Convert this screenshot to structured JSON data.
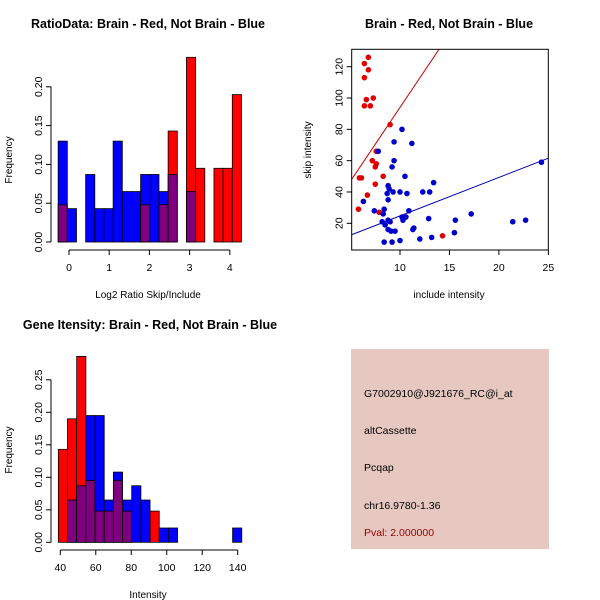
{
  "colors": {
    "red": "#ff0000",
    "blue": "#0000ff",
    "overlap": "#7f007f",
    "point_red": "#e00000",
    "point_blue": "#0000cc",
    "red_line": "#cc0000",
    "blue_line": "#0000aa",
    "info_bg": "#e6c8c0",
    "pval": "#990000"
  },
  "chart_data": [
    {
      "type": "bar",
      "subtype": "overlaid-histogram",
      "title": "RatioData: Brain - Red, Not Brain - Blue",
      "xlabel": "Log2 Ratio Skip/Include",
      "ylabel": "Frequency",
      "bin_start": -0.27,
      "bin_width": 0.228,
      "xticks": [
        0,
        1,
        2,
        3,
        4
      ],
      "yticks": [
        "0.00",
        "0.05",
        "0.10",
        "0.15",
        "0.20"
      ],
      "ylim": [
        0,
        0.24
      ],
      "series": [
        {
          "name": "Brain",
          "color": "red",
          "values": [
            0.048,
            0,
            0,
            0,
            0,
            0,
            0,
            0,
            0,
            0.048,
            0,
            0.048,
            0.143,
            0,
            0.238,
            0.095,
            0,
            0.095,
            0.095,
            0.19
          ]
        },
        {
          "name": "Not Brain",
          "color": "blue",
          "values": [
            0.13,
            0.043,
            0,
            0.087,
            0.043,
            0.043,
            0.13,
            0.065,
            0.065,
            0.087,
            0.087,
            0.065,
            0.087,
            0,
            0.065,
            0,
            0,
            0,
            0,
            0
          ]
        }
      ]
    },
    {
      "type": "scatter",
      "title": "Brain - Red, Not Brain - Blue",
      "xlabel": "include intensity",
      "ylabel": "skip intensity",
      "xlim": [
        5.1,
        25
      ],
      "ylim": [
        -3,
        131
      ],
      "xticks": [
        10,
        15,
        20,
        25
      ],
      "yticks": [
        20,
        40,
        60,
        80,
        100,
        120
      ],
      "series": [
        {
          "name": "Brain",
          "color": "red",
          "points": [
            [
              6.8,
              126
            ],
            [
              6.4,
              122
            ],
            [
              6.8,
              118
            ],
            [
              6.4,
              113
            ],
            [
              6.6,
              99
            ],
            [
              7.3,
              100
            ],
            [
              6.4,
              95
            ],
            [
              7.0,
              95
            ],
            [
              9.0,
              83
            ],
            [
              7.6,
              66
            ],
            [
              7.2,
              60
            ],
            [
              7.6,
              58
            ],
            [
              7.5,
              56
            ],
            [
              8.3,
              50
            ],
            [
              5.9,
              49
            ],
            [
              6.1,
              49
            ],
            [
              7.5,
              45
            ],
            [
              6.7,
              38
            ],
            [
              5.8,
              29
            ],
            [
              7.9,
              27
            ],
            [
              14.3,
              12
            ]
          ],
          "fit": {
            "slope": 9.4,
            "intercept": 0
          }
        },
        {
          "name": "Not Brain",
          "color": "blue",
          "points": [
            [
              10.2,
              80
            ],
            [
              9.4,
              72
            ],
            [
              11.2,
              71
            ],
            [
              7.8,
              66
            ],
            [
              9.4,
              60
            ],
            [
              9.2,
              56
            ],
            [
              10.5,
              50
            ],
            [
              13.4,
              46
            ],
            [
              8.8,
              44
            ],
            [
              8.9,
              42
            ],
            [
              9.3,
              40
            ],
            [
              10.0,
              40
            ],
            [
              12.3,
              40
            ],
            [
              13.0,
              40
            ],
            [
              8.7,
              39
            ],
            [
              10.7,
              39
            ],
            [
              8.8,
              35
            ],
            [
              6.3,
              34
            ],
            [
              7.4,
              28
            ],
            [
              8.4,
              29
            ],
            [
              10.9,
              28
            ],
            [
              8.3,
              26
            ],
            [
              12.9,
              23
            ],
            [
              10.6,
              24
            ],
            [
              10.2,
              24
            ],
            [
              10.3,
              22
            ],
            [
              8.2,
              21
            ],
            [
              8.8,
              22
            ],
            [
              9.0,
              21
            ],
            [
              8.5,
              19
            ],
            [
              15.6,
              22
            ],
            [
              17.2,
              26
            ],
            [
              21.4,
              21
            ],
            [
              22.7,
              22
            ],
            [
              24.3,
              59
            ],
            [
              8.8,
              16
            ],
            [
              9.1,
              15
            ],
            [
              9.5,
              15
            ],
            [
              11.3,
              16
            ],
            [
              11.4,
              17
            ],
            [
              15.5,
              14
            ],
            [
              12.0,
              10
            ],
            [
              13.2,
              11
            ],
            [
              8.4,
              8
            ],
            [
              9.2,
              8
            ],
            [
              10.0,
              9
            ]
          ],
          "fit": {
            "slope": 2.46,
            "intercept": 0.1
          }
        }
      ]
    },
    {
      "type": "bar",
      "subtype": "overlaid-histogram",
      "title": "Gene Itensity: Brain - Red, Not Brain - Blue",
      "xlabel": "Intensity",
      "ylabel": "Frequency",
      "bin_start": 38.9,
      "bin_width": 5.17,
      "xticks": [
        40,
        60,
        80,
        100,
        120,
        140
      ],
      "yticks": [
        "0.00",
        "0.05",
        "0.10",
        "0.15",
        "0.20",
        "0.25"
      ],
      "ylim": [
        0,
        0.29
      ],
      "series": [
        {
          "name": "Brain",
          "color": "red",
          "values": [
            0.143,
            0.19,
            0.286,
            0.095,
            0.048,
            0.048,
            0.095,
            0.048,
            0,
            0,
            0.048,
            0,
            0,
            0,
            0,
            0,
            0,
            0,
            0,
            0
          ]
        },
        {
          "name": "Not Brain",
          "color": "blue",
          "values": [
            0,
            0.065,
            0.087,
            0.195,
            0.195,
            0.065,
            0.108,
            0.065,
            0.087,
            0.065,
            0,
            0.022,
            0.022,
            0,
            0,
            0,
            0,
            0,
            0,
            0.022
          ]
        }
      ]
    }
  ],
  "info": {
    "probe": "G7002910@J921676_RC@i_at",
    "event_type": "altCassette",
    "gene": "Pcqap",
    "location": "chr16.9780-1.36",
    "pval": "Pval: 2.000000"
  }
}
